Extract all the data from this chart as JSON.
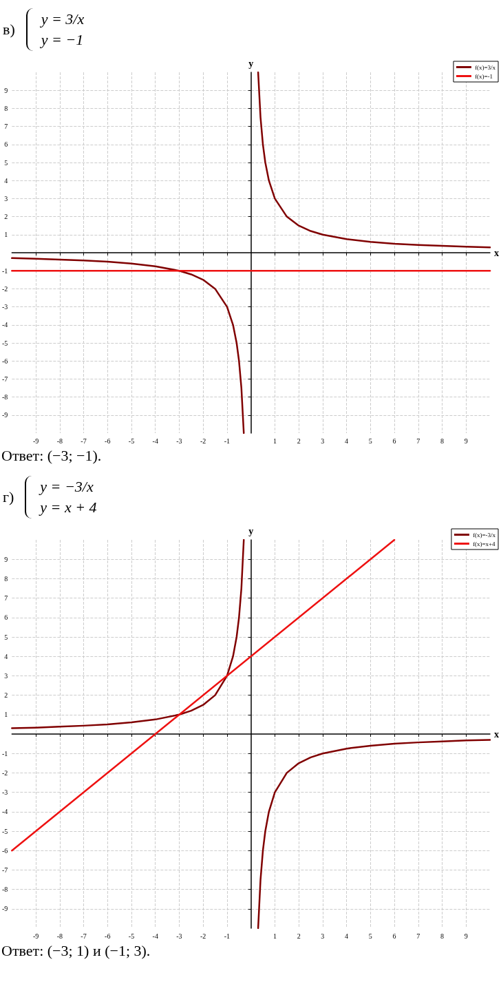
{
  "chart_data": [
    {
      "type": "line",
      "title": "в)",
      "xlabel": "x",
      "ylabel": "y",
      "annotations": [
        "y = 3/x",
        "y = −1",
        "Ответ: (−3; −1)."
      ],
      "xlim": [
        -10,
        10
      ],
      "ylim": [
        -10,
        10
      ],
      "xticks": [
        -9,
        -8,
        -7,
        -6,
        -5,
        -4,
        -3,
        -2,
        -1,
        1,
        2,
        3,
        4,
        5,
        6,
        7,
        8,
        9
      ],
      "yticks": [
        -9,
        -8,
        -7,
        -6,
        -5,
        -4,
        -3,
        -2,
        -1,
        1,
        2,
        3,
        4,
        5,
        6,
        7,
        8,
        9
      ],
      "grid": true,
      "legend": "top right",
      "marker": "none",
      "line_style": "solid",
      "series": [
        {
          "name": "f(x)=3/x",
          "color": "#800000",
          "x": [
            -10,
            -9,
            -8,
            -7,
            -6,
            -5,
            -4,
            -3,
            -2.5,
            -2,
            -1.5,
            -1,
            -0.75,
            -0.6,
            -0.5,
            -0.4,
            -0.3,
            0,
            0.3,
            0.4,
            0.5,
            0.6,
            0.75,
            1,
            1.5,
            2,
            2.5,
            3,
            4,
            5,
            6,
            7,
            8,
            9,
            10
          ],
          "values": [
            -0.3,
            -0.33,
            -0.38,
            -0.43,
            -0.5,
            -0.6,
            -0.75,
            -1,
            -1.2,
            -1.5,
            -2,
            -3,
            -4,
            -5,
            -6,
            -7.5,
            -10,
            null,
            10,
            7.5,
            6,
            5,
            4,
            3,
            2,
            1.5,
            1.2,
            1,
            0.75,
            0.6,
            0.5,
            0.43,
            0.38,
            0.33,
            0.3
          ]
        },
        {
          "name": "f(x)=-1",
          "color": "#ee1111",
          "x": [
            -10,
            10
          ],
          "values": [
            -1,
            -1
          ]
        }
      ]
    },
    {
      "type": "line",
      "title": "г)",
      "xlabel": "x",
      "ylabel": "y",
      "annotations": [
        "y = −3/x",
        "y = x + 4",
        "Ответ: (−3; 1) и (−1; 3)."
      ],
      "xlim": [
        -10,
        10
      ],
      "ylim": [
        -10,
        10
      ],
      "xticks": [
        -9,
        -8,
        -7,
        -6,
        -5,
        -4,
        -3,
        -2,
        -1,
        1,
        2,
        3,
        4,
        5,
        6,
        7,
        8,
        9
      ],
      "yticks": [
        -9,
        -8,
        -7,
        -6,
        -5,
        -4,
        -3,
        -2,
        -1,
        1,
        2,
        3,
        4,
        5,
        6,
        7,
        8,
        9
      ],
      "grid": true,
      "legend": "top right",
      "marker": "none",
      "line_style": "solid",
      "series": [
        {
          "name": "f(x)=-3/x",
          "color": "#800000",
          "x": [
            -10,
            -9,
            -8,
            -7,
            -6,
            -5,
            -4,
            -3,
            -2.5,
            -2,
            -1.5,
            -1,
            -0.75,
            -0.6,
            -0.5,
            -0.4,
            -0.3,
            0,
            0.3,
            0.4,
            0.5,
            0.6,
            0.75,
            1,
            1.5,
            2,
            2.5,
            3,
            4,
            5,
            6,
            7,
            8,
            9,
            10
          ],
          "values": [
            0.3,
            0.33,
            0.38,
            0.43,
            0.5,
            0.6,
            0.75,
            1,
            1.2,
            1.5,
            2,
            3,
            4,
            5,
            6,
            7.5,
            10,
            null,
            -10,
            -7.5,
            -6,
            -5,
            -4,
            -3,
            -2,
            -1.5,
            -1.2,
            -1,
            -0.75,
            -0.6,
            -0.5,
            -0.43,
            -0.38,
            -0.33,
            -0.3
          ]
        },
        {
          "name": "f(x)=x+4",
          "color": "#ee1111",
          "x": [
            -10,
            6
          ],
          "values": [
            -6,
            10
          ]
        }
      ]
    }
  ]
}
